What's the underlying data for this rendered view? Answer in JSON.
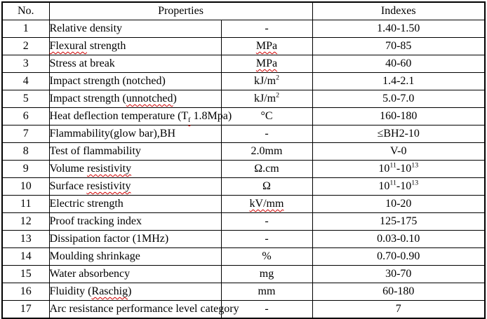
{
  "table": {
    "headers": {
      "no": "No.",
      "properties": "Properties",
      "indexes": "Indexes"
    },
    "rows": [
      {
        "no": "1",
        "property": "Relative density",
        "unit": "-",
        "index": "1.40-1.50"
      },
      {
        "no": "2",
        "property": [
          {
            "t": "Flexural",
            "wavy": true
          },
          {
            "t": " strength"
          }
        ],
        "unit": [
          {
            "t": "MPa",
            "wavy": true
          }
        ],
        "index": "70-85"
      },
      {
        "no": "3",
        "property": "Stress at break",
        "unit": [
          {
            "t": "MPa",
            "wavy": true
          }
        ],
        "index": "40-60"
      },
      {
        "no": "4",
        "property": "Impact strength (notched)",
        "unit": [
          {
            "t": "kJ/m"
          },
          {
            "t": "2",
            "sup": true
          }
        ],
        "index": "1.4-2.1"
      },
      {
        "no": "5",
        "property": [
          {
            "t": "Impact strength ("
          },
          {
            "t": "unnotched",
            "wavy": true
          },
          {
            "t": ")"
          }
        ],
        "unit": [
          {
            "t": "kJ/m"
          },
          {
            "t": "2",
            "sup": true
          }
        ],
        "index": "5.0-7.0"
      },
      {
        "no": "6",
        "property": [
          {
            "t": "Heat deflection temperature (T"
          },
          {
            "t": "f",
            "sub": true,
            "wavy": true
          },
          {
            "t": " 1.8Mpa)"
          }
        ],
        "unit": "°C",
        "index": "160-180"
      },
      {
        "no": "7",
        "property": "Flammability(glow bar),BH",
        "unit": "-",
        "index": "≤BH2-10"
      },
      {
        "no": "8",
        "property": "Test of flammability",
        "unit": "2.0mm",
        "index": "V-0"
      },
      {
        "no": "9",
        "property": [
          {
            "t": "Volume "
          },
          {
            "t": "resistivity",
            "wavy": true
          }
        ],
        "unit": "Ω.cm",
        "index": [
          {
            "t": "10"
          },
          {
            "t": "11",
            "sup": true
          },
          {
            "t": "-10"
          },
          {
            "t": "13",
            "sup": true
          }
        ]
      },
      {
        "no": "10",
        "property": [
          {
            "t": "Surface "
          },
          {
            "t": "resistivity",
            "wavy": true
          }
        ],
        "unit": "Ω",
        "index": [
          {
            "t": "10"
          },
          {
            "t": "11",
            "sup": true
          },
          {
            "t": "-10"
          },
          {
            "t": "13",
            "sup": true
          }
        ]
      },
      {
        "no": "11",
        "property": "Electric strength",
        "unit": [
          {
            "t": "kV/mm",
            "wavy": true
          }
        ],
        "index": "10-20"
      },
      {
        "no": "12",
        "property": "Proof tracking index",
        "unit": "-",
        "index": "125-175"
      },
      {
        "no": "13",
        "property": "Dissipation factor (1MHz)",
        "unit": "-",
        "index": "0.03-0.10"
      },
      {
        "no": "14",
        "property": "Moulding shrinkage",
        "unit": "%",
        "index": "0.70-0.90"
      },
      {
        "no": "15",
        "property": "Water absorbency",
        "unit": "mg",
        "index": "30-70"
      },
      {
        "no": "16",
        "property": [
          {
            "t": "Fluidity ("
          },
          {
            "t": "Raschig",
            "wavy": true
          },
          {
            "t": ")"
          }
        ],
        "unit": "mm",
        "index": "60-180"
      },
      {
        "no": "17",
        "property": "Arc resistance performance level category",
        "unit": "-",
        "index": "7",
        "index_valign": "top"
      }
    ]
  },
  "colors": {
    "border": "#000000",
    "text": "#000000",
    "squiggle": "#d00000",
    "background": "#ffffff"
  }
}
